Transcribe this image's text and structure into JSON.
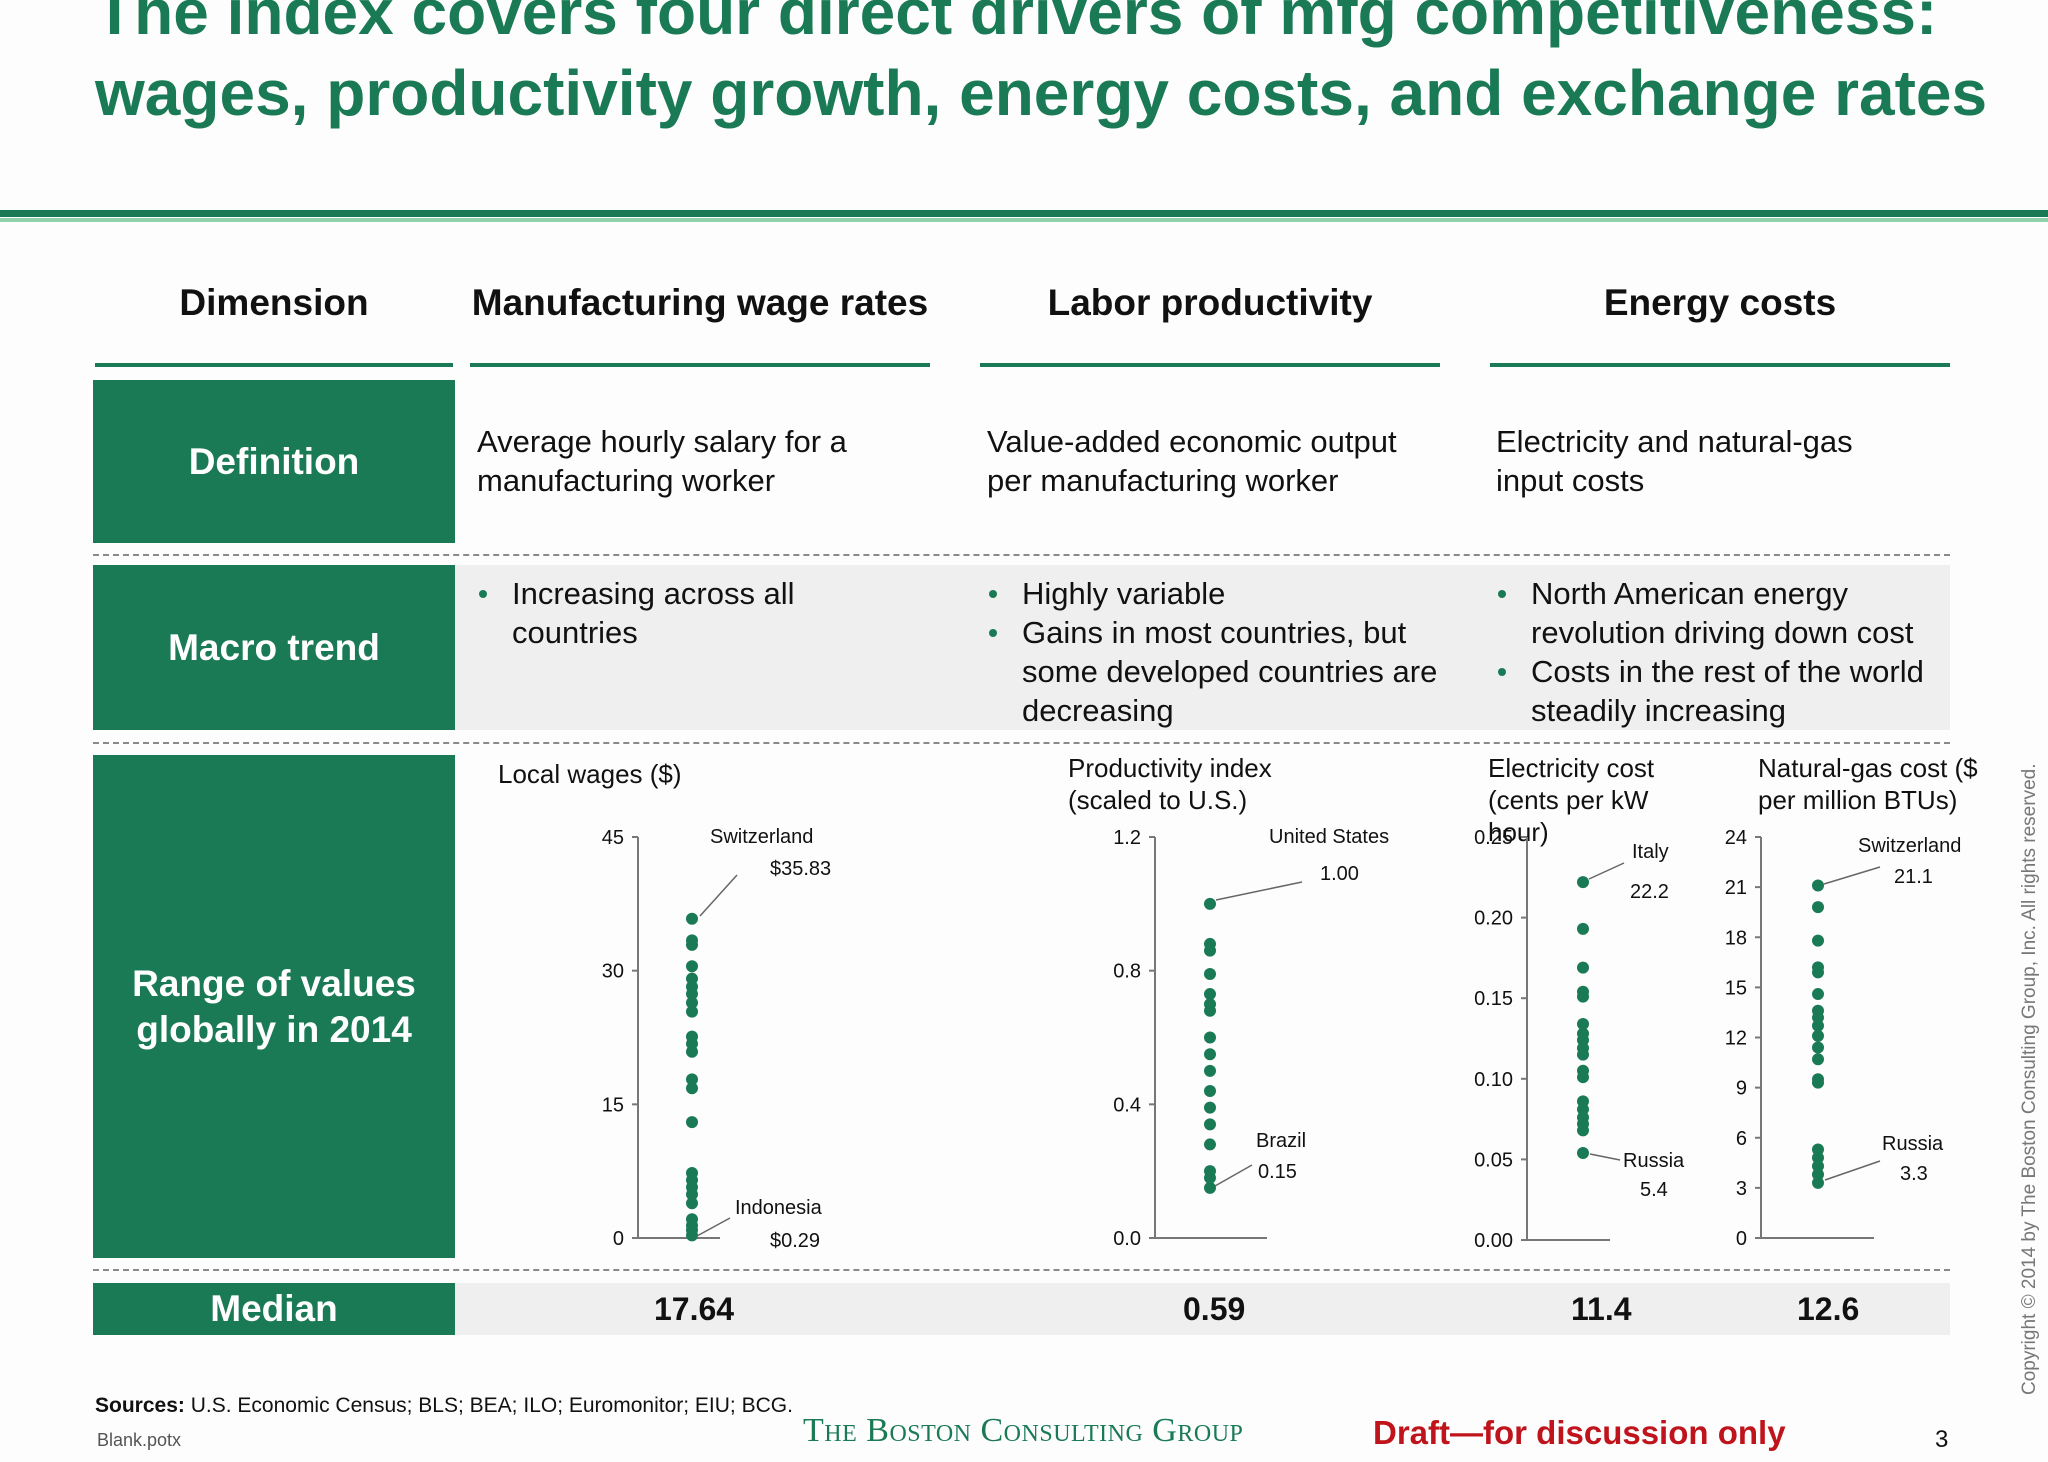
{
  "title": "The index covers four direct drivers of mfg competitiveness: wages, productivity growth, energy costs, and exchange rates",
  "columns": {
    "dimension": "Dimension",
    "wages": "Manufacturing wage rates",
    "productivity": "Labor productivity",
    "energy": "Energy costs"
  },
  "rows": {
    "definition": {
      "label": "Definition",
      "wages": "Average hourly salary for a manufacturing worker",
      "productivity": "Value-added economic output per manufacturing worker",
      "energy": "Electricity and natural-gas input costs"
    },
    "macro": {
      "label": "Macro trend",
      "wages": [
        "Increasing across all countries"
      ],
      "productivity": [
        "Highly variable",
        "Gains in most countries, but some developed countries are decreasing"
      ],
      "energy": [
        "North American energy revolution driving down cost",
        "Costs in the rest of the world steadily increasing"
      ]
    },
    "range": {
      "label": "Range of values globally in 2014"
    },
    "median": {
      "label": "Median",
      "wages": "17.64",
      "productivity": "0.59",
      "electricity": "11.4",
      "gas": "12.6"
    }
  },
  "chart_data": [
    {
      "type": "scatter",
      "title": "Local wages ($)",
      "ylim": [
        0,
        45
      ],
      "yticks": [
        "0",
        "15",
        "30",
        "45"
      ],
      "values": [
        35.83,
        33.4,
        32.9,
        30.5,
        29.1,
        28.2,
        27.4,
        26.4,
        25.4,
        22.6,
        21.8,
        20.9,
        17.8,
        16.8,
        13.0,
        7.3,
        6.5,
        5.7,
        4.9,
        3.9,
        2.1,
        1.4,
        0.9,
        0.29
      ],
      "annotations": [
        {
          "name": "Switzerland",
          "value": "$35.83"
        },
        {
          "name": "Indonesia",
          "value": "$0.29"
        }
      ]
    },
    {
      "type": "scatter",
      "title": "Productivity index (scaled to U.S.)",
      "ylim": [
        0.0,
        1.2
      ],
      "yticks": [
        "0.0",
        "0.4",
        "0.8",
        "1.2"
      ],
      "values": [
        1.0,
        0.88,
        0.86,
        0.79,
        0.73,
        0.7,
        0.68,
        0.6,
        0.55,
        0.5,
        0.44,
        0.39,
        0.34,
        0.28,
        0.2,
        0.18,
        0.15
      ],
      "annotations": [
        {
          "name": "United States",
          "value": "1.00"
        },
        {
          "name": "Brazil",
          "value": "0.15"
        }
      ]
    },
    {
      "type": "scatter",
      "title": "Electricity cost (cents per kW hour)",
      "ylim": [
        0.0,
        0.25
      ],
      "yticks": [
        "0.00",
        "0.05",
        "0.10",
        "0.15",
        "0.20",
        "0.25"
      ],
      "values": [
        0.222,
        0.193,
        0.169,
        0.154,
        0.151,
        0.134,
        0.128,
        0.124,
        0.119,
        0.115,
        0.105,
        0.101,
        0.086,
        0.081,
        0.076,
        0.072,
        0.068,
        0.054
      ],
      "annotations": [
        {
          "name": "Italy",
          "value": "22.2"
        },
        {
          "name": "Russia",
          "value": "5.4"
        }
      ]
    },
    {
      "type": "scatter",
      "title": "Natural-gas cost ($ per million BTUs)",
      "ylim": [
        0,
        24
      ],
      "yticks": [
        "0",
        "3",
        "6",
        "9",
        "12",
        "15",
        "18",
        "21",
        "24"
      ],
      "values": [
        21.1,
        19.8,
        17.8,
        16.2,
        15.9,
        14.6,
        13.6,
        13.2,
        12.7,
        12.1,
        11.4,
        10.7,
        9.5,
        9.3,
        5.3,
        4.8,
        4.3,
        3.8,
        3.3
      ],
      "annotations": [
        {
          "name": "Switzerland",
          "value": "21.1"
        },
        {
          "name": "Russia",
          "value": "3.3"
        }
      ]
    }
  ],
  "footer": {
    "sources_label": "Sources:",
    "sources": "U.S. Economic Census; BLS; BEA; ILO; Euromonitor; EIU; BCG.",
    "file": "Blank.potx",
    "logo_text": "The Boston Consulting Group",
    "draft": "Draft—for discussion only",
    "page": "3",
    "copyright": "Copyright © 2014 by The Boston Consulting Group, Inc. All rights reserved."
  },
  "colors": {
    "accent": "#1a7a56",
    "accent_light": "#8fd1a8",
    "draft": "#c0141c"
  }
}
